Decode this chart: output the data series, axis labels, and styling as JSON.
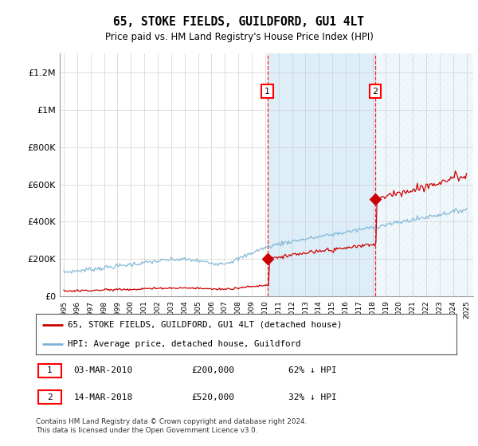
{
  "title": "65, STOKE FIELDS, GUILDFORD, GU1 4LT",
  "subtitle": "Price paid vs. HM Land Registry's House Price Index (HPI)",
  "hpi_color": "#7ab3d4",
  "price_color": "#cc0000",
  "shade_color": "#ddeef8",
  "ylim": [
    0,
    1300000
  ],
  "yticks": [
    0,
    200000,
    400000,
    600000,
    800000,
    1000000,
    1200000
  ],
  "ytick_labels": [
    "£0",
    "£200K",
    "£400K",
    "£600K",
    "£800K",
    "£1M",
    "£1.2M"
  ],
  "xstart_year": 1995,
  "xend_year": 2025,
  "purchase1_year": 2010.17,
  "purchase1_price": 200000,
  "purchase2_year": 2018.2,
  "purchase2_price": 520000,
  "legend_line1": "65, STOKE FIELDS, GUILDFORD, GU1 4LT (detached house)",
  "legend_line2": "HPI: Average price, detached house, Guildford",
  "footnote": "Contains HM Land Registry data © Crown copyright and database right 2024.\nThis data is licensed under the Open Government Licence v3.0.",
  "background_color": "#ffffff"
}
